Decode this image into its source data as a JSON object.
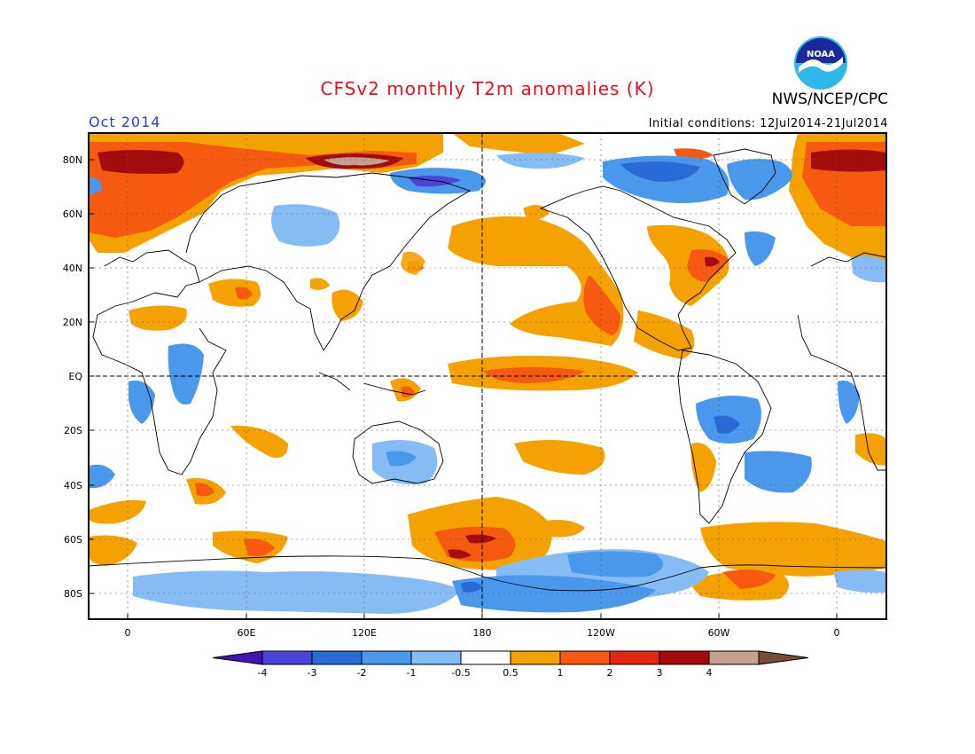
{
  "header": {
    "title": "CFSv2 monthly T2m anomalies (K)",
    "org": "NWS/NCEP/CPC",
    "logo_text": "NOAA",
    "month": "Oct 2014",
    "initial_conditions": "Initial conditions: 12Jul2014-21Jul2014"
  },
  "map": {
    "lat_labels": [
      "80N",
      "60N",
      "40N",
      "20N",
      "EQ",
      "20S",
      "40S",
      "60S",
      "80S"
    ],
    "lon_labels": [
      "0",
      "60E",
      "120E",
      "180",
      "120W",
      "60W",
      "0"
    ]
  },
  "colorbar": {
    "labels": [
      "-4",
      "-3",
      "-2",
      "-1",
      "-0.5",
      "0.5",
      "1",
      "2",
      "3",
      "4"
    ],
    "colors": [
      "#4414b4",
      "#4a44d8",
      "#2a6ad6",
      "#4a98ec",
      "#86bcf4",
      "#ffffff",
      "#f5a100",
      "#f55a10",
      "#e02814",
      "#a40c0c",
      "#c4a090",
      "#7a4a3a"
    ]
  },
  "palette": {
    "warm1": "#f5a100",
    "warm2": "#f55a10",
    "warm3": "#e02814",
    "warm4": "#a40c0c",
    "warm5": "#c4a090",
    "cool1": "#86bcf4",
    "cool2": "#4a98ec",
    "cool3": "#2a6ad6",
    "cool4": "#4a44d8",
    "title_red": "#e8101c",
    "month_blue": "#2a3ed8"
  }
}
